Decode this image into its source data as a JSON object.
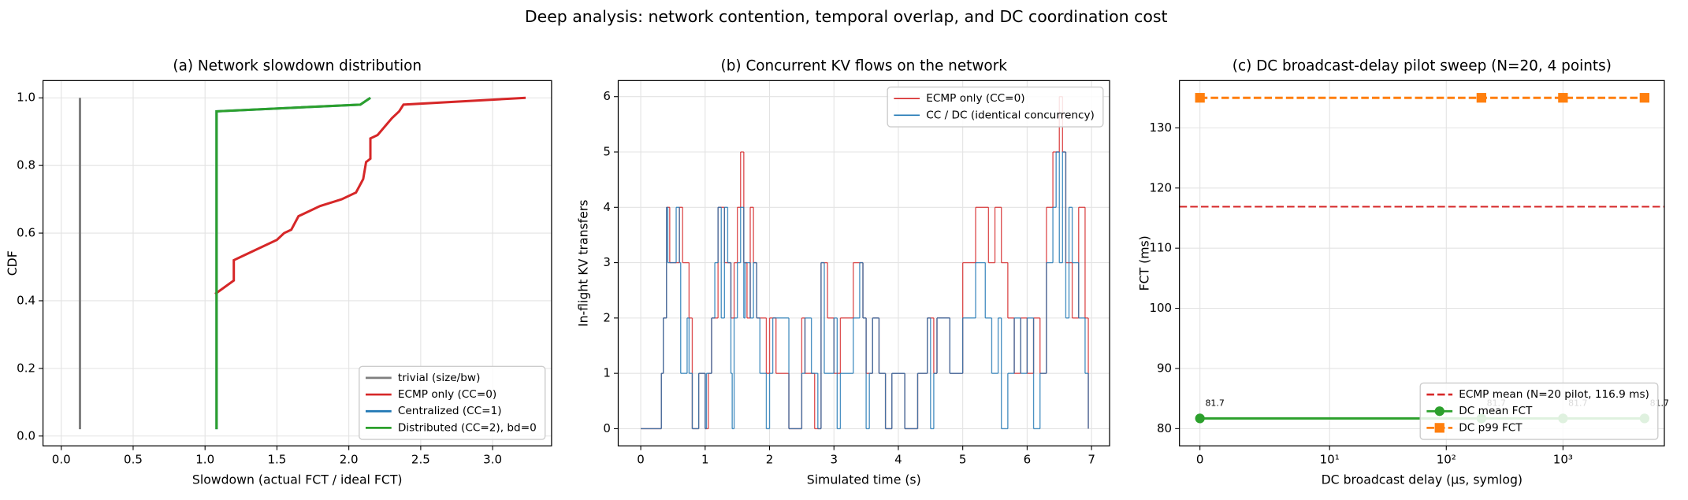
{
  "title": "Deep analysis: network contention, temporal overlap, and DC coordination cost",
  "chart_data": [
    {
      "type": "line",
      "title": "(a) Network slowdown distribution",
      "x_label": "Slowdown (actual FCT / ideal FCT)",
      "y_label": "CDF",
      "xlim": [
        -0.127,
        3.41
      ],
      "ylim": [
        -0.029,
        1.051
      ],
      "xticks": [
        {
          "value": 0,
          "label": "0.0"
        },
        0.5,
        {
          "value": 1,
          "label": "1.0"
        },
        1.5,
        {
          "value": 2,
          "label": "2.0"
        },
        2.5,
        {
          "value": 3,
          "label": "3.0"
        }
      ],
      "yticks": [
        {
          "value": 0,
          "label": "0.0"
        },
        0.2,
        0.4,
        0.6,
        0.8,
        {
          "value": 1,
          "label": "1.0"
        }
      ],
      "grid": true,
      "legend": "lower right",
      "series": [
        {
          "name": "trivial (size/bw)",
          "color": "#7f7f7f",
          "x": [
            0.13,
            0.13
          ],
          "values": [
            0.02,
            1.0
          ]
        },
        {
          "name": "ECMP only (CC=0)",
          "color": "#d62728",
          "x": [
            1.07,
            1.2,
            1.2,
            1.25,
            1.35,
            1.5,
            1.55,
            1.6,
            1.65,
            1.8,
            1.95,
            2.05,
            2.1,
            2.12,
            2.15,
            2.15,
            2.2,
            2.3,
            2.35,
            2.38,
            3.23
          ],
          "values": [
            0.42,
            0.46,
            0.52,
            0.53,
            0.55,
            0.58,
            0.6,
            0.61,
            0.65,
            0.68,
            0.7,
            0.72,
            0.76,
            0.81,
            0.82,
            0.88,
            0.89,
            0.94,
            0.96,
            0.98,
            1.0
          ]
        },
        {
          "name": "Centralized (CC=1)",
          "color": "#1f77b4",
          "x": [
            1.08,
            1.08,
            2.08,
            2.15
          ],
          "values": [
            0.02,
            0.96,
            0.98,
            1.0
          ]
        },
        {
          "name": "Distributed (CC=2), bd=0",
          "color": "#2ca02c",
          "x": [
            1.08,
            1.08,
            2.08,
            2.15
          ],
          "values": [
            0.02,
            0.96,
            0.98,
            1.0
          ]
        }
      ]
    },
    {
      "type": "step",
      "title": "(b) Concurrent KV flows on the network",
      "x_label": "Simulated time (s)",
      "y_label": "In-flight KV transfers",
      "xlim": [
        -0.35,
        7.28
      ],
      "ylim": [
        -0.31,
        6.29
      ],
      "xticks": [
        0,
        1,
        2,
        3,
        4,
        5,
        6,
        7
      ],
      "yticks": [
        0,
        1,
        2,
        3,
        4,
        5,
        6
      ],
      "grid": true,
      "legend": "upper right",
      "series": [
        {
          "name": "ECMP only (CC=0)",
          "color": "#d62728",
          "x": [
            0,
            0.32,
            0.35,
            0.4,
            0.45,
            0.6,
            0.65,
            0.75,
            0.8,
            0.9,
            1.0,
            1.05,
            1.1,
            1.2,
            1.3,
            1.4,
            1.45,
            1.5,
            1.55,
            1.6,
            1.65,
            1.7,
            1.75,
            1.8,
            1.95,
            2.0,
            2.1,
            2.3,
            2.5,
            2.55,
            2.7,
            2.8,
            2.9,
            3.0,
            3.1,
            3.3,
            3.45,
            3.5,
            3.6,
            3.7,
            3.8,
            3.9,
            4.1,
            4.3,
            4.45,
            4.55,
            4.6,
            4.8,
            5.0,
            5.2,
            5.4,
            5.5,
            5.6,
            5.7,
            5.8,
            5.9,
            6.0,
            6.1,
            6.2,
            6.3,
            6.4,
            6.5,
            6.55,
            6.6,
            6.7,
            6.8,
            6.9,
            6.95
          ],
          "values": [
            0,
            1,
            2,
            4,
            3,
            4,
            3,
            2,
            0,
            1,
            0,
            1,
            2,
            4,
            3,
            2,
            3,
            4,
            5,
            3,
            2,
            4,
            3,
            2,
            1,
            2,
            1,
            0,
            2,
            1,
            0,
            3,
            2,
            1,
            2,
            3,
            2,
            1,
            2,
            1,
            0,
            1,
            0,
            1,
            2,
            1,
            2,
            1,
            3,
            4,
            3,
            4,
            3,
            2,
            1,
            2,
            1,
            2,
            1,
            4,
            5,
            6,
            5,
            3,
            2,
            4,
            2,
            0
          ]
        },
        {
          "name": "CC / DC (identical concurrency)",
          "color": "#1f77b4",
          "x": [
            0,
            0.32,
            0.35,
            0.4,
            0.42,
            0.55,
            0.6,
            0.62,
            0.72,
            0.75,
            0.8,
            0.9,
            1.0,
            1.02,
            1.1,
            1.15,
            1.2,
            1.25,
            1.3,
            1.35,
            1.4,
            1.42,
            1.45,
            1.5,
            1.55,
            1.6,
            1.62,
            1.7,
            1.75,
            1.8,
            1.85,
            1.95,
            2.0,
            2.05,
            2.3,
            2.5,
            2.55,
            2.65,
            2.75,
            2.8,
            2.85,
            3.0,
            3.05,
            3.1,
            3.3,
            3.4,
            3.45,
            3.5,
            3.55,
            3.6,
            3.7,
            3.8,
            3.9,
            4.1,
            4.3,
            4.45,
            4.5,
            4.55,
            4.6,
            4.8,
            5.0,
            5.2,
            5.35,
            5.45,
            5.55,
            5.6,
            5.7,
            5.8,
            5.9,
            6.0,
            6.1,
            6.2,
            6.3,
            6.4,
            6.45,
            6.5,
            6.55,
            6.6,
            6.65,
            6.7,
            6.8,
            6.9,
            6.95
          ],
          "values": [
            0,
            1,
            2,
            4,
            3,
            4,
            3,
            1,
            2,
            1,
            0,
            1,
            0,
            1,
            2,
            3,
            4,
            2,
            4,
            3,
            1,
            0,
            2,
            3,
            4,
            2,
            3,
            2,
            3,
            2,
            1,
            0,
            1,
            2,
            0,
            1,
            2,
            1,
            0,
            3,
            1,
            2,
            0,
            1,
            2,
            3,
            2,
            0,
            1,
            2,
            1,
            0,
            1,
            0,
            1,
            2,
            0,
            1,
            2,
            1,
            2,
            3,
            2,
            1,
            2,
            0,
            1,
            2,
            1,
            2,
            0,
            1,
            3,
            4,
            5,
            3,
            5,
            2,
            4,
            3,
            2,
            1,
            0
          ]
        }
      ]
    },
    {
      "type": "line",
      "title": "(c) DC broadcast-delay pilot sweep (N=20, 4 points)",
      "x_label": "DC broadcast delay (µs, symlog)",
      "y_label": "FCT (ms)",
      "xscale": "symlog",
      "linthresh": 10,
      "xlim": [
        -1.58,
        7390
      ],
      "ylim": [
        77.14,
        137.86
      ],
      "xticks": [
        0,
        {
          "value": 10,
          "label": "10¹"
        },
        {
          "value": 100,
          "label": "10²"
        },
        {
          "value": 1000,
          "label": "10³"
        }
      ],
      "yticks": [
        80,
        90,
        100,
        110,
        120,
        130
      ],
      "grid": true,
      "legend": "lower right",
      "hlines": [
        {
          "name": "ECMP mean (N=20 pilot, 116.9 ms)",
          "color": "#d62728",
          "linestyle": "--",
          "value": 116.9
        }
      ],
      "series": [
        {
          "name": "DC mean FCT",
          "color": "#2ca02c",
          "marker": "o",
          "x": [
            0,
            200,
            1000,
            5000
          ],
          "values": [
            81.7,
            81.7,
            81.7,
            81.7
          ],
          "value_labels": [
            "81.7",
            "81.7",
            "81.7",
            "81.7"
          ]
        },
        {
          "name": "DC p99 FCT",
          "color": "#ff7f0e",
          "marker": "s",
          "linestyle": "--",
          "x": [
            0,
            200,
            1000,
            5000
          ],
          "values": [
            135,
            135,
            135,
            135
          ]
        }
      ]
    }
  ]
}
